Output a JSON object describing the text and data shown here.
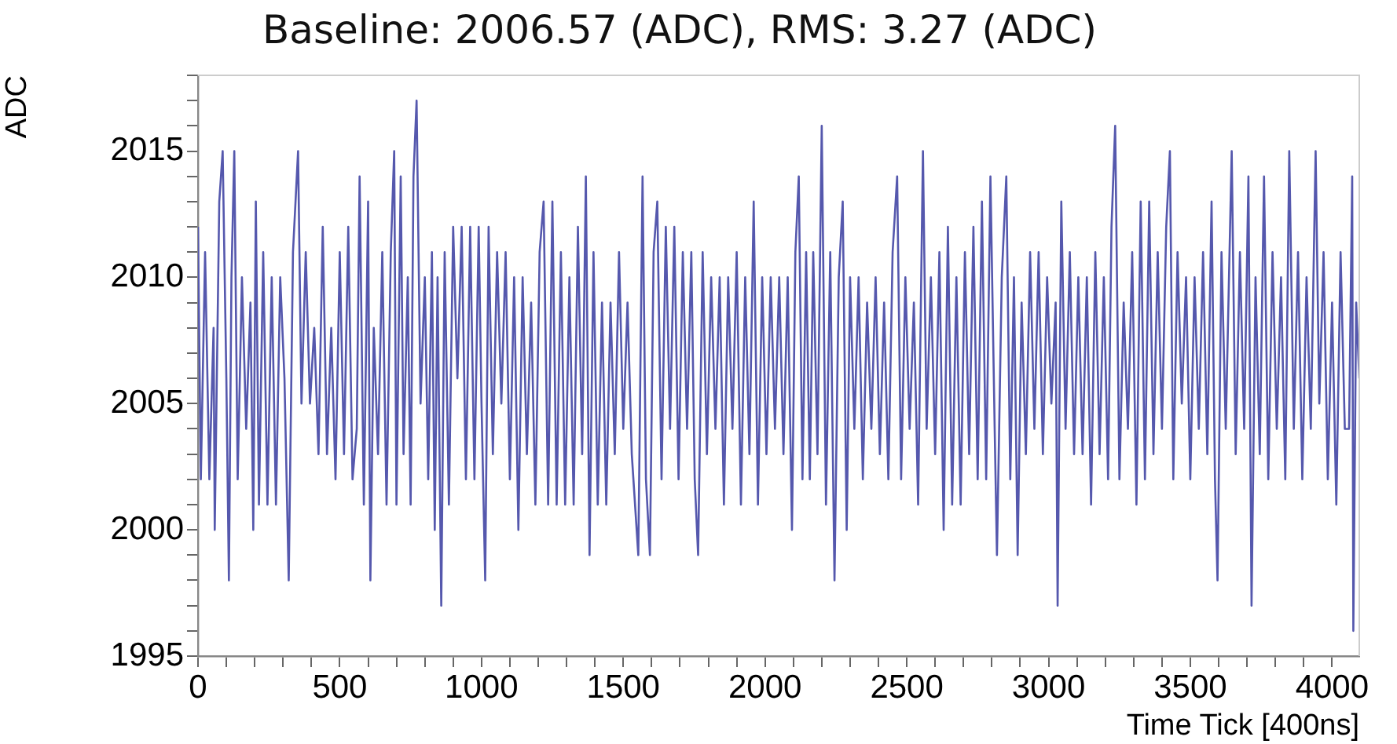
{
  "chart_data": {
    "type": "line",
    "title": "Baseline: 2006.57 (ADC), RMS: 3.27 (ADC)",
    "xlabel": "Time Tick [400ns]",
    "ylabel": "ADC",
    "xlim": [
      0,
      4096
    ],
    "xticks": [
      0,
      {
        "value": 100,
        "label": null
      },
      {
        "value": 200,
        "label": null
      },
      {
        "value": 300,
        "label": null
      },
      {
        "value": 400,
        "label": null
      },
      500,
      {
        "value": 600,
        "label": null
      },
      {
        "value": 700,
        "label": null
      },
      {
        "value": 800,
        "label": null
      },
      {
        "value": 900,
        "label": null
      },
      1000,
      {
        "value": 1100,
        "label": null
      },
      {
        "value": 1200,
        "label": null
      },
      {
        "value": 1300,
        "label": null
      },
      {
        "value": 1400,
        "label": null
      },
      1500,
      {
        "value": 1600,
        "label": null
      },
      {
        "value": 1700,
        "label": null
      },
      {
        "value": 1800,
        "label": null
      },
      {
        "value": 1900,
        "label": null
      },
      2000,
      {
        "value": 2100,
        "label": null
      },
      {
        "value": 2200,
        "label": null
      },
      {
        "value": 2300,
        "label": null
      },
      {
        "value": 2400,
        "label": null
      },
      2500,
      {
        "value": 2600,
        "label": null
      },
      {
        "value": 2700,
        "label": null
      },
      {
        "value": 2800,
        "label": null
      },
      {
        "value": 2900,
        "label": null
      },
      3000,
      {
        "value": 3100,
        "label": null
      },
      {
        "value": 3200,
        "label": null
      },
      {
        "value": 3300,
        "label": null
      },
      {
        "value": 3400,
        "label": null
      },
      3500,
      {
        "value": 3600,
        "label": null
      },
      {
        "value": 3700,
        "label": null
      },
      {
        "value": 3800,
        "label": null
      },
      {
        "value": 3900,
        "label": null
      },
      4000
    ],
    "ylim": [
      1995,
      2018
    ],
    "yticks": [
      1995,
      {
        "value": 1996,
        "label": null
      },
      {
        "value": 1997,
        "label": null
      },
      {
        "value": 1998,
        "label": null
      },
      {
        "value": 1999,
        "label": null
      },
      2000,
      {
        "value": 2001,
        "label": null
      },
      {
        "value": 2002,
        "label": null
      },
      {
        "value": 2003,
        "label": null
      },
      {
        "value": 2004,
        "label": null
      },
      2005,
      {
        "value": 2006,
        "label": null
      },
      {
        "value": 2007,
        "label": null
      },
      {
        "value": 2008,
        "label": null
      },
      {
        "value": 2009,
        "label": null
      },
      2010,
      {
        "value": 2011,
        "label": null
      },
      {
        "value": 2012,
        "label": null
      },
      {
        "value": 2013,
        "label": null
      },
      {
        "value": 2014,
        "label": null
      },
      2015,
      {
        "value": 2016,
        "label": null
      },
      {
        "value": 2017,
        "label": null
      },
      {
        "value": 2018,
        "label": null
      }
    ],
    "grid": false,
    "legend": false,
    "marker": "none",
    "line_style": "solid",
    "x": [
      0,
      10,
      25,
      40,
      55,
      59,
      75,
      87,
      100,
      109,
      118,
      128,
      140,
      155,
      170,
      185,
      195,
      204,
      215,
      230,
      245,
      260,
      275,
      290,
      305,
      320,
      335,
      353,
      365,
      380,
      395,
      410,
      425,
      440,
      455,
      470,
      485,
      500,
      515,
      530,
      545,
      560,
      570,
      585,
      600,
      608,
      620,
      635,
      650,
      665,
      680,
      692,
      700,
      715,
      725,
      740,
      750,
      760,
      771,
      785,
      800,
      812,
      825,
      835,
      845,
      858,
      870,
      885,
      900,
      915,
      930,
      945,
      960,
      975,
      990,
      1000,
      1013,
      1025,
      1040,
      1055,
      1070,
      1085,
      1100,
      1115,
      1130,
      1145,
      1160,
      1175,
      1190,
      1205,
      1219,
      1235,
      1250,
      1265,
      1280,
      1295,
      1310,
      1325,
      1340,
      1355,
      1368,
      1381,
      1395,
      1410,
      1425,
      1440,
      1455,
      1470,
      1485,
      1500,
      1515,
      1530,
      1553,
      1568,
      1580,
      1594,
      1607,
      1620,
      1635,
      1650,
      1665,
      1680,
      1695,
      1710,
      1725,
      1740,
      1752,
      1764,
      1780,
      1795,
      1810,
      1825,
      1840,
      1855,
      1870,
      1885,
      1900,
      1915,
      1930,
      1945,
      1960,
      1975,
      1990,
      2005,
      2020,
      2035,
      2050,
      2065,
      2080,
      2095,
      2107,
      2119,
      2132,
      2145,
      2158,
      2170,
      2185,
      2200,
      2215,
      2230,
      2245,
      2260,
      2274,
      2288,
      2300,
      2315,
      2330,
      2345,
      2360,
      2375,
      2390,
      2405,
      2420,
      2435,
      2450,
      2466,
      2480,
      2495,
      2510,
      2525,
      2540,
      2557,
      2570,
      2585,
      2600,
      2615,
      2630,
      2645,
      2660,
      2675,
      2690,
      2705,
      2720,
      2735,
      2750,
      2765,
      2780,
      2795,
      2810,
      2818,
      2835,
      2851,
      2865,
      2878,
      2891,
      2905,
      2920,
      2935,
      2950,
      2965,
      2980,
      2995,
      3010,
      3025,
      3032,
      3045,
      3060,
      3075,
      3090,
      3105,
      3120,
      3135,
      3150,
      3165,
      3180,
      3195,
      3210,
      3222,
      3235,
      3250,
      3265,
      3280,
      3295,
      3310,
      3325,
      3340,
      3355,
      3370,
      3385,
      3400,
      3415,
      3428,
      3440,
      3455,
      3470,
      3485,
      3500,
      3515,
      3530,
      3545,
      3560,
      3575,
      3587,
      3596,
      3610,
      3625,
      3646,
      3660,
      3675,
      3690,
      3705,
      3716,
      3730,
      3745,
      3760,
      3775,
      3790,
      3805,
      3820,
      3835,
      3849,
      3865,
      3880,
      3895,
      3910,
      3925,
      3942,
      3955,
      3970,
      3985,
      4000,
      4015,
      4030,
      4045,
      4060,
      4071,
      4075,
      4085,
      4096
    ],
    "series": [
      {
        "color": "#5558ad",
        "values": [
          2012,
          2002,
          2011,
          2002,
          2008,
          2000,
          2013,
          2015,
          2006,
          1998,
          2010,
          2015,
          2002,
          2010,
          2004,
          2009,
          2000,
          2013,
          2001,
          2011,
          2001,
          2010,
          2001,
          2010,
          2006,
          1998,
          2011,
          2015,
          2005,
          2011,
          2005,
          2008,
          2003,
          2012,
          2003,
          2008,
          2002,
          2011,
          2003,
          2012,
          2002,
          2004,
          2014,
          2001,
          2013,
          1998,
          2008,
          2003,
          2011,
          2001,
          2011,
          2015,
          2001,
          2014,
          2003,
          2010,
          2001,
          2014,
          2017,
          2005,
          2010,
          2002,
          2011,
          2000,
          2010,
          1997,
          2011,
          2001,
          2012,
          2006,
          2012,
          2002,
          2012,
          2002,
          2012,
          2005,
          1998,
          2012,
          2003,
          2011,
          2005,
          2011,
          2002,
          2010,
          2000,
          2010,
          2003,
          2009,
          2001,
          2011,
          2013,
          2001,
          2013,
          2001,
          2011,
          2001,
          2010,
          2001,
          2012,
          2003,
          2014,
          1999,
          2011,
          2001,
          2009,
          2001,
          2009,
          2003,
          2011,
          2004,
          2009,
          2003,
          1999,
          2014,
          2002,
          1999,
          2011,
          2013,
          2002,
          2012,
          2004,
          2012,
          2002,
          2011,
          2004,
          2011,
          2002,
          1999,
          2011,
          2003,
          2010,
          2004,
          2010,
          2001,
          2010,
          2004,
          2011,
          2001,
          2010,
          2003,
          2013,
          2001,
          2010,
          2003,
          2010,
          2004,
          2010,
          2003,
          2010,
          2000,
          2011,
          2014,
          2002,
          2011,
          2002,
          2011,
          2003,
          2016,
          2001,
          2011,
          1998,
          2010,
          2013,
          2000,
          2010,
          2004,
          2010,
          2002,
          2009,
          2004,
          2010,
          2003,
          2009,
          2002,
          2011,
          2014,
          2002,
          2010,
          2004,
          2009,
          2001,
          2015,
          2004,
          2010,
          2003,
          2011,
          2000,
          2012,
          2001,
          2010,
          2001,
          2011,
          2003,
          2012,
          2002,
          2013,
          2002,
          2014,
          2004,
          1999,
          2010,
          2014,
          2002,
          2010,
          1999,
          2009,
          2003,
          2011,
          2004,
          2011,
          2003,
          2010,
          2005,
          2009,
          1997,
          2013,
          2004,
          2011,
          2003,
          2010,
          2003,
          2010,
          2001,
          2011,
          2003,
          2010,
          2002,
          2012,
          2016,
          2002,
          2009,
          2004,
          2011,
          2001,
          2013,
          2002,
          2013,
          2003,
          2011,
          2004,
          2012,
          2015,
          2002,
          2011,
          2005,
          2010,
          2002,
          2010,
          2004,
          2011,
          2003,
          2013,
          2002,
          1998,
          2011,
          2004,
          2015,
          2003,
          2011,
          2004,
          2014,
          1997,
          2010,
          2003,
          2014,
          2002,
          2011,
          2004,
          2010,
          2002,
          2015,
          2004,
          2011,
          2002,
          2010,
          2004,
          2015,
          2005,
          2011,
          2002,
          2009,
          2001,
          2011,
          2004,
          2004,
          2014,
          1996,
          2009,
          2006
        ]
      }
    ]
  }
}
